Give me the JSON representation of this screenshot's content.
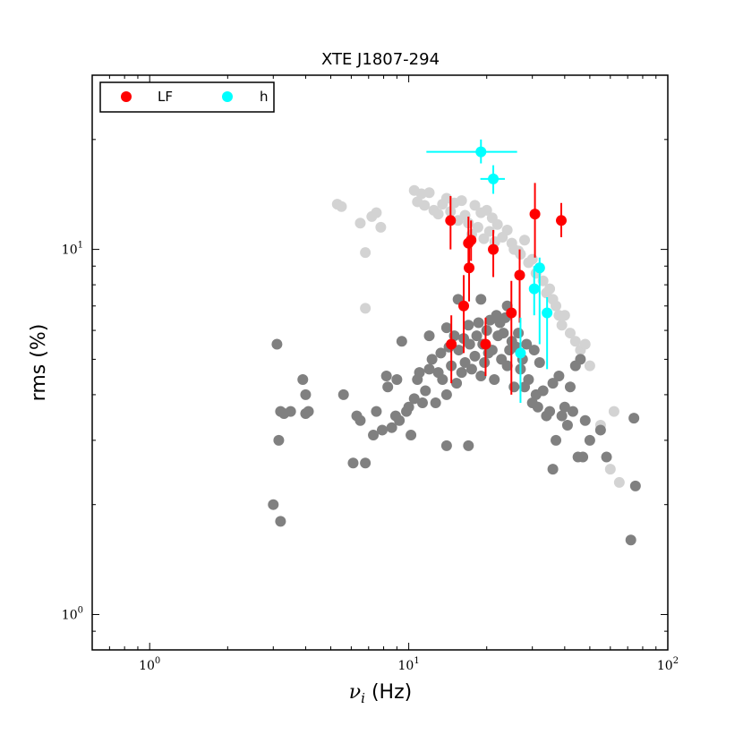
{
  "chart_data": {
    "type": "scatter",
    "title": "XTE J1807-294",
    "xlabel_symbol": "ν",
    "xlabel_sub": "i",
    "xlabel_unit": " (Hz)",
    "ylabel": "rms (%)",
    "xscale": "log",
    "yscale": "log",
    "xlim": [
      0.6,
      100
    ],
    "ylim": [
      0.8,
      30
    ],
    "x_tick_labels": [
      {
        "value": 1,
        "base": "10",
        "exp": "0"
      },
      {
        "value": 10,
        "base": "10",
        "exp": "1"
      },
      {
        "value": 100,
        "base": "10",
        "exp": "2"
      }
    ],
    "y_tick_labels": [
      {
        "value": 1,
        "base": "10",
        "exp": "0"
      },
      {
        "value": 10,
        "base": "10",
        "exp": "1"
      }
    ],
    "legend": {
      "placement": "top-left",
      "entries": [
        {
          "label": "LF",
          "color": "#ff0000"
        },
        {
          "label": "h",
          "color": "#00ffff"
        }
      ]
    },
    "series": [
      {
        "color": "#d3d3d3",
        "points": [
          [
            5.3,
            13.3
          ],
          [
            5.5,
            13.1
          ],
          [
            6.5,
            11.8
          ],
          [
            7.2,
            12.3
          ],
          [
            7.5,
            12.6
          ],
          [
            7.8,
            11.5
          ],
          [
            6.8,
            9.8
          ],
          [
            6.8,
            6.9
          ],
          [
            10.5,
            14.5
          ],
          [
            10.8,
            13.5
          ],
          [
            11.2,
            14.2
          ],
          [
            11.5,
            13.2
          ],
          [
            12.0,
            14.3
          ],
          [
            12.5,
            12.8
          ],
          [
            13.0,
            12.5
          ],
          [
            13.5,
            13.3
          ],
          [
            14.0,
            13.8
          ],
          [
            14.5,
            12.7
          ],
          [
            15.0,
            13.4
          ],
          [
            15.5,
            12.0
          ],
          [
            16.0,
            13.6
          ],
          [
            16.5,
            12.4
          ],
          [
            17.0,
            11.8
          ],
          [
            17.5,
            11.0
          ],
          [
            18.0,
            13.2
          ],
          [
            18.5,
            11.5
          ],
          [
            19.0,
            12.6
          ],
          [
            19.5,
            10.7
          ],
          [
            20.0,
            12.8
          ],
          [
            20.5,
            11.2
          ],
          [
            21.0,
            12.2
          ],
          [
            21.5,
            10.5
          ],
          [
            22.0,
            11.7
          ],
          [
            23.0,
            10.8
          ],
          [
            24.0,
            11.3
          ],
          [
            25.0,
            10.4
          ],
          [
            25.5,
            10.0
          ],
          [
            26.5,
            9.9
          ],
          [
            27.0,
            9.7
          ],
          [
            28.0,
            10.6
          ],
          [
            29.0,
            9.2
          ],
          [
            30.0,
            9.4
          ],
          [
            31.0,
            8.6
          ],
          [
            32.0,
            8.9
          ],
          [
            33.0,
            8.2
          ],
          [
            34.0,
            7.6
          ],
          [
            35.0,
            7.8
          ],
          [
            36.0,
            7.3
          ],
          [
            37.0,
            7.0
          ],
          [
            38.0,
            6.6
          ],
          [
            39.0,
            6.2
          ],
          [
            40.0,
            6.6
          ],
          [
            42.0,
            5.9
          ],
          [
            44.0,
            5.6
          ],
          [
            46.0,
            5.3
          ],
          [
            48.0,
            5.5
          ],
          [
            50.0,
            4.8
          ],
          [
            55.0,
            3.3
          ],
          [
            60.0,
            2.5
          ],
          [
            62.0,
            3.6
          ],
          [
            65.0,
            2.3
          ]
        ]
      },
      {
        "color": "#808080",
        "points": [
          [
            3.0,
            2.0
          ],
          [
            3.1,
            5.5
          ],
          [
            3.15,
            3.0
          ],
          [
            3.2,
            3.6
          ],
          [
            3.3,
            3.55
          ],
          [
            3.2,
            1.8
          ],
          [
            3.5,
            3.6
          ],
          [
            3.9,
            4.4
          ],
          [
            4.0,
            3.55
          ],
          [
            4.1,
            3.6
          ],
          [
            4.0,
            4.0
          ],
          [
            5.6,
            4.0
          ],
          [
            6.1,
            2.6
          ],
          [
            6.3,
            3.5
          ],
          [
            6.5,
            3.4
          ],
          [
            6.8,
            2.6
          ],
          [
            7.3,
            3.1
          ],
          [
            7.5,
            3.6
          ],
          [
            7.9,
            3.2
          ],
          [
            8.2,
            4.5
          ],
          [
            8.3,
            4.2
          ],
          [
            8.6,
            3.25
          ],
          [
            8.9,
            3.5
          ],
          [
            9.0,
            4.4
          ],
          [
            9.2,
            3.4
          ],
          [
            9.4,
            5.6
          ],
          [
            9.8,
            3.6
          ],
          [
            10.0,
            3.7
          ],
          [
            10.2,
            3.1
          ],
          [
            10.5,
            3.9
          ],
          [
            10.8,
            4.4
          ],
          [
            11.0,
            4.6
          ],
          [
            11.3,
            3.8
          ],
          [
            11.6,
            4.1
          ],
          [
            12.0,
            4.7
          ],
          [
            12.3,
            5.0
          ],
          [
            12.7,
            3.8
          ],
          [
            13.0,
            4.6
          ],
          [
            13.3,
            5.2
          ],
          [
            13.5,
            4.4
          ],
          [
            14.0,
            4.0
          ],
          [
            14.0,
            6.1
          ],
          [
            14.3,
            5.4
          ],
          [
            14.6,
            4.8
          ],
          [
            15.0,
            5.8
          ],
          [
            15.3,
            4.3
          ],
          [
            15.6,
            5.3
          ],
          [
            16.0,
            4.6
          ],
          [
            16.3,
            5.7
          ],
          [
            16.5,
            4.9
          ],
          [
            17.0,
            6.2
          ],
          [
            17.2,
            5.5
          ],
          [
            17.5,
            4.7
          ],
          [
            18.0,
            5.1
          ],
          [
            18.3,
            5.8
          ],
          [
            18.6,
            6.3
          ],
          [
            19.0,
            4.5
          ],
          [
            19.3,
            5.5
          ],
          [
            19.6,
            4.9
          ],
          [
            20.0,
            6.0
          ],
          [
            20.3,
            5.2
          ],
          [
            20.6,
            6.4
          ],
          [
            21.0,
            5.3
          ],
          [
            21.4,
            4.4
          ],
          [
            21.8,
            6.6
          ],
          [
            22.1,
            5.8
          ],
          [
            22.5,
            6.3
          ],
          [
            22.8,
            5.0
          ],
          [
            23.2,
            5.9
          ],
          [
            23.6,
            6.5
          ],
          [
            24.0,
            4.8
          ],
          [
            24.5,
            5.3
          ],
          [
            25.0,
            5.6
          ],
          [
            25.5,
            4.2
          ],
          [
            26.0,
            5.4
          ],
          [
            26.5,
            5.9
          ],
          [
            27.0,
            4.7
          ],
          [
            27.5,
            5.0
          ],
          [
            28.0,
            4.2
          ],
          [
            28.5,
            5.5
          ],
          [
            29.0,
            4.4
          ],
          [
            30.0,
            3.8
          ],
          [
            30.5,
            5.3
          ],
          [
            31.0,
            4.0
          ],
          [
            31.5,
            3.7
          ],
          [
            32.0,
            4.9
          ],
          [
            33.0,
            4.1
          ],
          [
            34.0,
            3.5
          ],
          [
            35.0,
            3.6
          ],
          [
            36.0,
            4.3
          ],
          [
            37.0,
            3.0
          ],
          [
            38.0,
            4.5
          ],
          [
            39.0,
            3.5
          ],
          [
            40.0,
            3.7
          ],
          [
            41.0,
            3.3
          ],
          [
            42.0,
            4.2
          ],
          [
            43.0,
            3.6
          ],
          [
            44.0,
            4.8
          ],
          [
            45.0,
            2.7
          ],
          [
            46.0,
            5.0
          ],
          [
            47.0,
            2.7
          ],
          [
            48.0,
            3.4
          ],
          [
            50.0,
            3.0
          ],
          [
            55.0,
            3.2
          ],
          [
            58.0,
            2.7
          ],
          [
            72.0,
            1.6
          ],
          [
            74.0,
            3.45
          ],
          [
            75.0,
            2.25
          ],
          [
            14.0,
            2.9
          ],
          [
            17.0,
            2.9
          ],
          [
            15.5,
            7.3
          ],
          [
            19.0,
            7.3
          ],
          [
            24.0,
            7.0
          ],
          [
            12.0,
            5.8
          ],
          [
            36.0,
            2.5
          ]
        ]
      }
    ],
    "LF_points": [
      {
        "x": 14.5,
        "y": 12.0,
        "yerr": [
          10.0,
          14.0
        ]
      },
      {
        "x": 14.6,
        "y": 5.5,
        "yerr": [
          4.3,
          6.6
        ]
      },
      {
        "x": 16.3,
        "y": 7.0,
        "yerr": [
          5.2,
          8.5
        ]
      },
      {
        "x": 17.0,
        "y": 10.4,
        "yerr": [
          8.7,
          12.3
        ]
      },
      {
        "x": 17.4,
        "y": 10.6,
        "yerr": [
          9.3,
          12.0
        ]
      },
      {
        "x": 17.1,
        "y": 8.9,
        "yerr": [
          7.2,
          10.5
        ]
      },
      {
        "x": 19.8,
        "y": 5.5,
        "yerr": [
          4.5,
          6.5
        ]
      },
      {
        "x": 21.2,
        "y": 10.0,
        "yerr": [
          8.4,
          11.3
        ]
      },
      {
        "x": 24.9,
        "y": 6.7,
        "yerr": [
          4.0,
          8.2
        ]
      },
      {
        "x": 26.8,
        "y": 8.5,
        "yerr": [
          6.3,
          10.0
        ]
      },
      {
        "x": 30.7,
        "y": 12.5,
        "yerr": [
          9.5,
          15.2
        ]
      },
      {
        "x": 38.8,
        "y": 12.0,
        "yerr": [
          10.8,
          13.4
        ]
      }
    ],
    "h_points": [
      {
        "x": 19.0,
        "y": 18.5,
        "xerr": [
          11.7,
          26.2
        ],
        "yerr": [
          17.2,
          20.0
        ]
      },
      {
        "x": 21.2,
        "y": 15.6,
        "xerr": [
          18.9,
          23.5
        ],
        "yerr": [
          14.2,
          17.0
        ]
      },
      {
        "x": 27.0,
        "y": 5.2,
        "yerr": [
          3.8,
          6.5
        ]
      },
      {
        "x": 30.5,
        "y": 7.8,
        "yerr": [
          6.6,
          9.0
        ]
      },
      {
        "x": 32.0,
        "y": 8.9,
        "yerr": [
          5.5,
          9.5
        ]
      },
      {
        "x": 34.2,
        "y": 6.7,
        "yerr": [
          4.7,
          7.4
        ]
      }
    ]
  }
}
